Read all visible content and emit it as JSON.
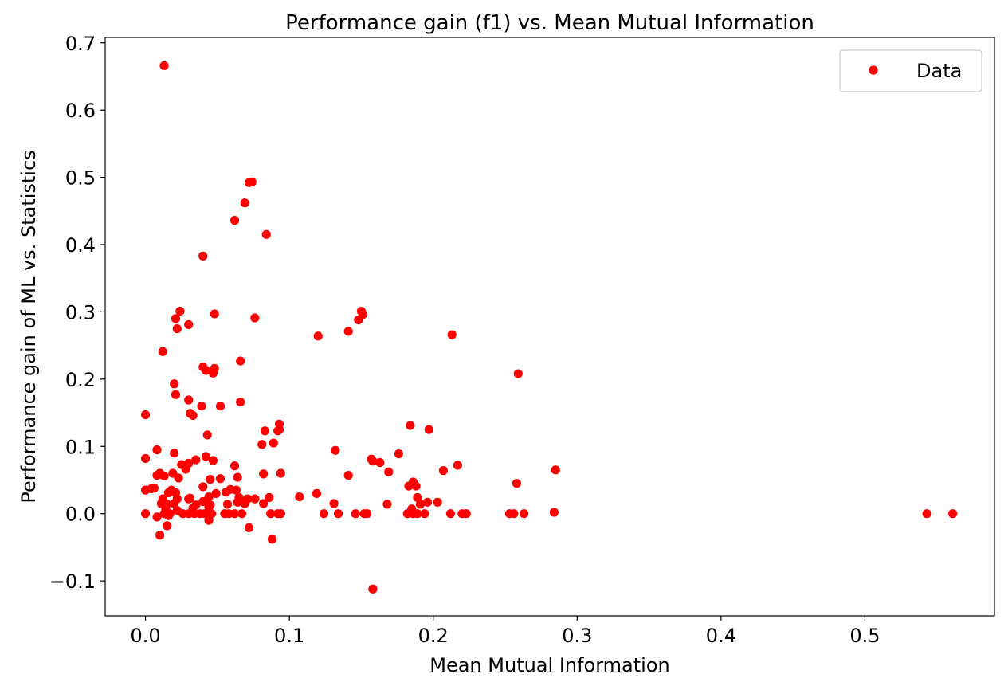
{
  "chart_data": {
    "type": "scatter",
    "title": "Performance gain (f1) vs. Mean Mutual Information",
    "xlabel": "Mean Mutual Information",
    "ylabel": "Performance gain of ML vs. Statistics",
    "xlim": [
      -0.028,
      0.59
    ],
    "ylim": [
      -0.152,
      0.708
    ],
    "xticks": [
      0.0,
      0.1,
      0.2,
      0.3,
      0.4,
      0.5
    ],
    "xtick_labels": [
      "0.0",
      "0.1",
      "0.2",
      "0.3",
      "0.4",
      "0.5"
    ],
    "yticks": [
      -0.1,
      0.0,
      0.1,
      0.2,
      0.3,
      0.4,
      0.5,
      0.6,
      0.7
    ],
    "ytick_labels": [
      "−0.1",
      "0.0",
      "0.1",
      "0.2",
      "0.3",
      "0.4",
      "0.5",
      "0.6",
      "0.7"
    ],
    "grid": false,
    "legend_position": "top-right",
    "series": [
      {
        "name": "Data",
        "color": "#ff0000",
        "marker": "circle",
        "points": [
          [
            0.013,
            0.666
          ],
          [
            0.072,
            0.492
          ],
          [
            0.074,
            0.493
          ],
          [
            0.069,
            0.462
          ],
          [
            0.062,
            0.436
          ],
          [
            0.084,
            0.415
          ],
          [
            0.04,
            0.383
          ],
          [
            0.024,
            0.301
          ],
          [
            0.048,
            0.297
          ],
          [
            0.021,
            0.29
          ],
          [
            0.076,
            0.291
          ],
          [
            0.15,
            0.301
          ],
          [
            0.151,
            0.296
          ],
          [
            0.148,
            0.288
          ],
          [
            0.03,
            0.281
          ],
          [
            0.022,
            0.275
          ],
          [
            0.141,
            0.271
          ],
          [
            0.12,
            0.264
          ],
          [
            0.213,
            0.266
          ],
          [
            0.012,
            0.241
          ],
          [
            0.066,
            0.227
          ],
          [
            0.04,
            0.218
          ],
          [
            0.042,
            0.213
          ],
          [
            0.048,
            0.216
          ],
          [
            0.047,
            0.209
          ],
          [
            0.259,
            0.208
          ],
          [
            0.02,
            0.193
          ],
          [
            0.021,
            0.177
          ],
          [
            0.03,
            0.169
          ],
          [
            0.066,
            0.166
          ],
          [
            0.039,
            0.16
          ],
          [
            0.052,
            0.16
          ],
          [
            0.0,
            0.147
          ],
          [
            0.031,
            0.149
          ],
          [
            0.033,
            0.146
          ],
          [
            0.093,
            0.133
          ],
          [
            0.184,
            0.131
          ],
          [
            0.092,
            0.123
          ],
          [
            0.093,
            0.125
          ],
          [
            0.083,
            0.123
          ],
          [
            0.197,
            0.125
          ],
          [
            0.043,
            0.117
          ],
          [
            0.081,
            0.103
          ],
          [
            0.089,
            0.105
          ],
          [
            0.008,
            0.095
          ],
          [
            0.132,
            0.094
          ],
          [
            0.02,
            0.09
          ],
          [
            0.176,
            0.089
          ],
          [
            0.0,
            0.082
          ],
          [
            0.042,
            0.085
          ],
          [
            0.035,
            0.08
          ],
          [
            0.047,
            0.079
          ],
          [
            0.157,
            0.081
          ],
          [
            0.158,
            0.078
          ],
          [
            0.163,
            0.076
          ],
          [
            0.03,
            0.075
          ],
          [
            0.025,
            0.073
          ],
          [
            0.217,
            0.072
          ],
          [
            0.062,
            0.071
          ],
          [
            0.028,
            0.066
          ],
          [
            0.207,
            0.064
          ],
          [
            0.285,
            0.065
          ],
          [
            0.01,
            0.06
          ],
          [
            0.019,
            0.06
          ],
          [
            0.169,
            0.062
          ],
          [
            0.008,
            0.057
          ],
          [
            0.013,
            0.056
          ],
          [
            0.141,
            0.057
          ],
          [
            0.082,
            0.059
          ],
          [
            0.094,
            0.06
          ],
          [
            0.023,
            0.053
          ],
          [
            0.052,
            0.052
          ],
          [
            0.045,
            0.051
          ],
          [
            0.064,
            0.054
          ],
          [
            0.258,
            0.045
          ],
          [
            0.186,
            0.047
          ],
          [
            0.183,
            0.041
          ],
          [
            0.188,
            0.041
          ],
          [
            0.04,
            0.04
          ],
          [
            0.006,
            0.038
          ],
          [
            0.004,
            0.037
          ],
          [
            0.0,
            0.035
          ],
          [
            0.018,
            0.035
          ],
          [
            0.016,
            0.031
          ],
          [
            0.021,
            0.031
          ],
          [
            0.059,
            0.036
          ],
          [
            0.063,
            0.035
          ],
          [
            0.049,
            0.03
          ],
          [
            0.056,
            0.032
          ],
          [
            0.119,
            0.03
          ],
          [
            0.189,
            0.024
          ],
          [
            0.107,
            0.025
          ],
          [
            0.044,
            0.025
          ],
          [
            0.03,
            0.022
          ],
          [
            0.031,
            0.023
          ],
          [
            0.012,
            0.022
          ],
          [
            0.022,
            0.022
          ],
          [
            0.065,
            0.024
          ],
          [
            0.071,
            0.022
          ],
          [
            0.076,
            0.022
          ],
          [
            0.086,
            0.024
          ],
          [
            0.011,
            0.015
          ],
          [
            0.015,
            0.014
          ],
          [
            0.02,
            0.015
          ],
          [
            0.035,
            0.013
          ],
          [
            0.04,
            0.018
          ],
          [
            0.045,
            0.013
          ],
          [
            0.057,
            0.014
          ],
          [
            0.064,
            0.017
          ],
          [
            0.069,
            0.015
          ],
          [
            0.082,
            0.015
          ],
          [
            0.131,
            0.015
          ],
          [
            0.168,
            0.014
          ],
          [
            0.191,
            0.014
          ],
          [
            0.196,
            0.017
          ],
          [
            0.203,
            0.017
          ],
          [
            0.014,
            0.007
          ],
          [
            0.022,
            0.005
          ],
          [
            0.033,
            0.008
          ],
          [
            0.044,
            0.01
          ],
          [
            0.185,
            0.007
          ],
          [
            0.0,
            0.0
          ],
          [
            0.013,
            0.0
          ],
          [
            0.017,
            0.0
          ],
          [
            0.026,
            0.0
          ],
          [
            0.03,
            0.0
          ],
          [
            0.034,
            0.0
          ],
          [
            0.038,
            0.0
          ],
          [
            0.041,
            0.0
          ],
          [
            0.046,
            0.0
          ],
          [
            0.055,
            0.0
          ],
          [
            0.058,
            0.0
          ],
          [
            0.062,
            0.0
          ],
          [
            0.067,
            0.0
          ],
          [
            0.087,
            0.0
          ],
          [
            0.092,
            0.0
          ],
          [
            0.094,
            0.0
          ],
          [
            0.124,
            0.0
          ],
          [
            0.134,
            0.0
          ],
          [
            0.146,
            0.0
          ],
          [
            0.152,
            0.0
          ],
          [
            0.154,
            0.0
          ],
          [
            0.182,
            0.0
          ],
          [
            0.186,
            0.0
          ],
          [
            0.189,
            0.0
          ],
          [
            0.194,
            0.0
          ],
          [
            0.212,
            0.0
          ],
          [
            0.22,
            0.0
          ],
          [
            0.223,
            0.0
          ],
          [
            0.253,
            0.0
          ],
          [
            0.256,
            0.0
          ],
          [
            0.263,
            0.0
          ],
          [
            0.284,
            0.002
          ],
          [
            0.543,
            0.0
          ],
          [
            0.561,
            0.0
          ],
          [
            0.008,
            -0.005
          ],
          [
            0.016,
            -0.003
          ],
          [
            0.044,
            -0.01
          ],
          [
            0.015,
            -0.018
          ],
          [
            0.072,
            -0.021
          ],
          [
            0.01,
            -0.032
          ],
          [
            0.088,
            -0.038
          ],
          [
            0.158,
            -0.112
          ]
        ]
      }
    ]
  }
}
